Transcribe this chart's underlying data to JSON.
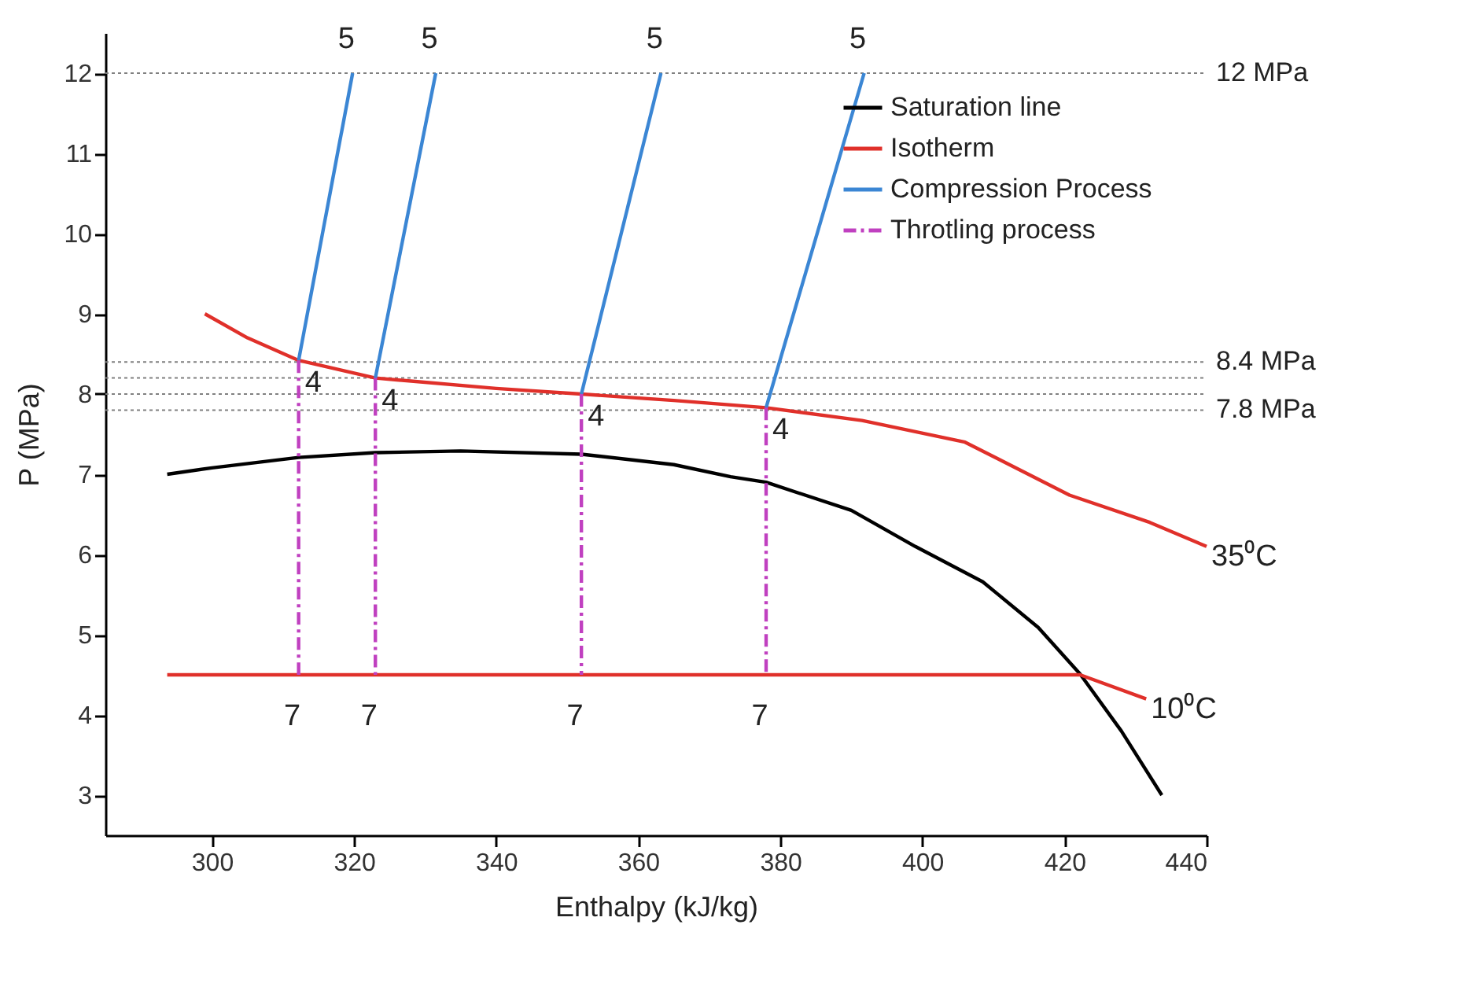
{
  "chart_data": {
    "type": "line",
    "xlabel": "Enthalpy (kJ/kg)",
    "ylabel": "P (MPa)",
    "xlim": [
      285,
      440
    ],
    "ylim": [
      2.5,
      12.5
    ],
    "xticks": [
      300,
      320,
      340,
      360,
      380,
      400,
      420,
      440
    ],
    "yticks": [
      3,
      4,
      5,
      6,
      7,
      8,
      9,
      10,
      11,
      12
    ],
    "grid": false,
    "legend": "top right",
    "marker": "none",
    "series": [
      {
        "name": "Saturation line",
        "color": "#000000",
        "line_style": "solid",
        "x": [
          293.7,
          300,
          312.2,
          323,
          335,
          352,
          365,
          373,
          378,
          390,
          399,
          408.5,
          416.3,
          422.2,
          428,
          433.7
        ],
        "values": [
          7.0,
          7.08,
          7.21,
          7.27,
          7.29,
          7.25,
          7.12,
          6.97,
          6.9,
          6.55,
          6.1,
          5.66,
          5.09,
          4.51,
          3.8,
          3.0
        ]
      },
      {
        "name": "Isotherm",
        "color": "#e0302a",
        "line_style": "solid",
        "x": [
          299,
          305,
          312.2,
          323,
          340,
          352,
          365,
          378,
          391.5,
          406,
          420.7,
          432,
          440
        ],
        "values": [
          9.0,
          8.7,
          8.42,
          8.2,
          8.07,
          8.0,
          7.92,
          7.83,
          7.67,
          7.4,
          6.74,
          6.4,
          6.1
        ]
      },
      {
        "color": "#e0302a",
        "line_style": "solid",
        "x": [
          293.7,
          422.2,
          431.5
        ],
        "values": [
          4.5,
          4.5,
          4.2
        ]
      },
      {
        "name": "Compression Process",
        "color": "#3b86d4",
        "line_style": "solid",
        "x": [
          312.2,
          319.8
        ],
        "values": [
          8.42,
          12
        ]
      },
      {
        "color": "#3b86d4",
        "line_style": "solid",
        "x": [
          323,
          331.5
        ],
        "values": [
          8.2,
          12
        ]
      },
      {
        "color": "#3b86d4",
        "line_style": "solid",
        "x": [
          352,
          363.2
        ],
        "values": [
          8.0,
          12
        ]
      },
      {
        "color": "#3b86d4",
        "line_style": "solid",
        "x": [
          378,
          391.8
        ],
        "values": [
          7.83,
          12
        ]
      },
      {
        "name": "Throtling process",
        "color": "#c040c0",
        "line_style": "dashed",
        "x": [
          312.2,
          312.2
        ],
        "values": [
          8.42,
          4.5
        ]
      },
      {
        "color": "#c040c0",
        "line_style": "dashed",
        "x": [
          323,
          323
        ],
        "values": [
          8.2,
          4.5
        ]
      },
      {
        "color": "#c040c0",
        "line_style": "dashed",
        "x": [
          352,
          352
        ],
        "values": [
          8.0,
          4.5
        ]
      },
      {
        "color": "#c040c0",
        "line_style": "dashed",
        "x": [
          378,
          378
        ],
        "values": [
          7.83,
          4.5
        ]
      }
    ],
    "ref_lines": [
      {
        "axis": "y",
        "value": 12,
        "label": "12 MPa",
        "color": "#808080",
        "line_style": "dotted"
      },
      {
        "axis": "y",
        "value": 8.4,
        "label": "8.4 MPa",
        "color": "#808080",
        "line_style": "dotted"
      },
      {
        "axis": "y",
        "value": 8.2,
        "label": null,
        "color": "#808080",
        "line_style": "dotted"
      },
      {
        "axis": "y",
        "value": 8.0,
        "label": null,
        "color": "#808080",
        "line_style": "dotted"
      },
      {
        "axis": "y",
        "value": 7.8,
        "label": "7.8 MPa",
        "color": "#808080",
        "line_style": "dotted"
      }
    ],
    "annotations": [
      {
        "text": "5",
        "x": 319.8,
        "y": 12
      },
      {
        "text": "5",
        "x": 331.5,
        "y": 12
      },
      {
        "text": "5",
        "x": 363.2,
        "y": 12
      },
      {
        "text": "5",
        "x": 391.8,
        "y": 12
      },
      {
        "text": "4",
        "x": 312.2,
        "y": 8.42
      },
      {
        "text": "4",
        "x": 323,
        "y": 8.2
      },
      {
        "text": "4",
        "x": 352,
        "y": 8.0
      },
      {
        "text": "4",
        "x": 378,
        "y": 7.83
      },
      {
        "text": "7",
        "x": 312.2,
        "y": 4.5
      },
      {
        "text": "7",
        "x": 323,
        "y": 4.5
      },
      {
        "text": "7",
        "x": 352,
        "y": 4.5
      },
      {
        "text": "7",
        "x": 378,
        "y": 4.5
      },
      {
        "text": "35⁰C",
        "x": 440,
        "y": 6.1
      },
      {
        "text": "10⁰C",
        "x": 431.5,
        "y": 4.2
      }
    ]
  }
}
